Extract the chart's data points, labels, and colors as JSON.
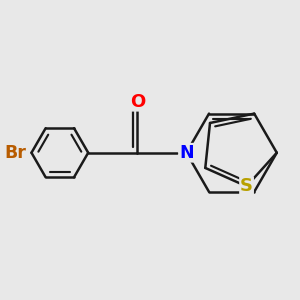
{
  "background_color": "#e8e8e8",
  "bond_color": "#1a1a1a",
  "bond_lw": 1.8,
  "atoms": {
    "Br": {
      "color": "#b85c00",
      "fontsize": 12.5
    },
    "O": {
      "color": "#ff0000",
      "fontsize": 13
    },
    "N": {
      "color": "#0000ff",
      "fontsize": 12.5
    },
    "S": {
      "color": "#b8a000",
      "fontsize": 13
    }
  },
  "scale": 1.0
}
